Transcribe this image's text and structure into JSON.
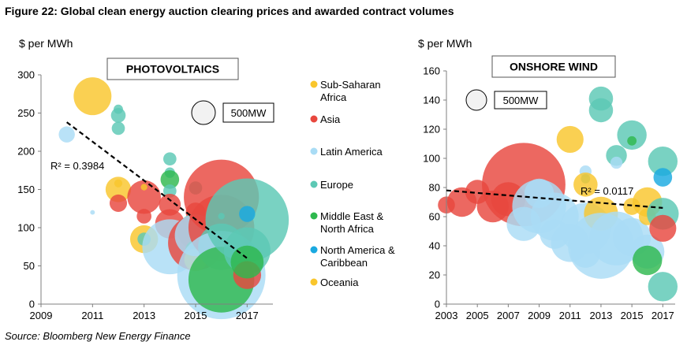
{
  "figure": {
    "title": "Figure 22: Global clean energy auction clearing prices and awarded contract volumes",
    "source": "Source: Bloomberg New Energy Finance"
  },
  "legend": [
    {
      "label": [
        "Sub-Saharan",
        "Africa"
      ],
      "color": "#f9c62c"
    },
    {
      "label": [
        "Asia"
      ],
      "color": "#e8473e"
    },
    {
      "label": [
        "Latin America"
      ],
      "color": "#a9dcf5"
    },
    {
      "label": [
        "Europe"
      ],
      "color": "#5cc8b4"
    },
    {
      "label": [
        "Middle East &",
        "North Africa"
      ],
      "color": "#2eb84e"
    },
    {
      "label": [
        "North America &",
        "Caribbean"
      ],
      "color": "#1aa9e0"
    },
    {
      "label": [
        "Oceania"
      ],
      "color": "#f9c62c"
    }
  ],
  "chart_data": [
    {
      "type": "scatter",
      "title": "PHOTOVOLTAICS",
      "ylabel": "$ per MWh",
      "xlabel": "",
      "xlim": [
        2009,
        2018
      ],
      "ylim": [
        0,
        300
      ],
      "xticks": [
        2009,
        2011,
        2013,
        2015,
        2017
      ],
      "yticks": [
        0,
        50,
        100,
        150,
        200,
        250,
        300
      ],
      "size_legend": "500MW",
      "trendline": {
        "x": [
          2010,
          2017
        ],
        "y": [
          238,
          60
        ],
        "label": "R² = 0.3984"
      },
      "points": [
        {
          "x": 2011.0,
          "y": 272,
          "mw": 330,
          "region": "Sub-Saharan Africa",
          "color": "#f9c62c"
        },
        {
          "x": 2010.0,
          "y": 222,
          "mw": 60,
          "region": "Latin America",
          "color": "#a9dcf5"
        },
        {
          "x": 2012.0,
          "y": 255,
          "mw": 20,
          "region": "Europe",
          "color": "#5cc8b4"
        },
        {
          "x": 2012.0,
          "y": 247,
          "mw": 50,
          "region": "Europe",
          "color": "#5cc8b4"
        },
        {
          "x": 2012.0,
          "y": 230,
          "mw": 40,
          "region": "Europe",
          "color": "#5cc8b4"
        },
        {
          "x": 2012.0,
          "y": 150,
          "mw": 150,
          "region": "Oceania",
          "color": "#f9c62c"
        },
        {
          "x": 2012.0,
          "y": 132,
          "mw": 70,
          "region": "Asia",
          "color": "#e8473e"
        },
        {
          "x": 2012.0,
          "y": 158,
          "mw": 15,
          "region": "Oceania",
          "color": "#f9c62c"
        },
        {
          "x": 2011.0,
          "y": 120,
          "mw": 5,
          "region": "Latin America",
          "color": "#a9dcf5"
        },
        {
          "x": 2013.0,
          "y": 140,
          "mw": 260,
          "region": "Asia",
          "color": "#e8473e"
        },
        {
          "x": 2013.0,
          "y": 153,
          "mw": 10,
          "region": "Oceania",
          "color": "#f9c62c"
        },
        {
          "x": 2013.0,
          "y": 85,
          "mw": 180,
          "region": "Oceania",
          "color": "#f9c62c"
        },
        {
          "x": 2013.0,
          "y": 85,
          "mw": 40,
          "region": "Europe",
          "color": "#5cc8b4"
        },
        {
          "x": 2013.0,
          "y": 115,
          "mw": 50,
          "region": "Asia",
          "color": "#e8473e"
        },
        {
          "x": 2014.0,
          "y": 190,
          "mw": 40,
          "region": "Europe",
          "color": "#5cc8b4"
        },
        {
          "x": 2014.0,
          "y": 172,
          "mw": 25,
          "region": "Europe",
          "color": "#5cc8b4"
        },
        {
          "x": 2014.0,
          "y": 163,
          "mw": 80,
          "region": "Middle East & North Africa",
          "color": "#2eb84e"
        },
        {
          "x": 2014.0,
          "y": 148,
          "mw": 40,
          "region": "Europe",
          "color": "#5cc8b4"
        },
        {
          "x": 2014.0,
          "y": 130,
          "mw": 110,
          "region": "Asia",
          "color": "#e8473e"
        },
        {
          "x": 2014.0,
          "y": 105,
          "mw": 200,
          "region": "Asia",
          "color": "#e8473e"
        },
        {
          "x": 2014.0,
          "y": 75,
          "mw": 700,
          "region": "Latin America",
          "color": "#a9dcf5"
        },
        {
          "x": 2015.0,
          "y": 152,
          "mw": 40,
          "region": "Europe",
          "color": "#5cc8b4"
        },
        {
          "x": 2015.0,
          "y": 120,
          "mw": 90,
          "region": "Asia",
          "color": "#e8473e"
        },
        {
          "x": 2015.0,
          "y": 95,
          "mw": 300,
          "region": "Europe",
          "color": "#5cc8b4"
        },
        {
          "x": 2015.0,
          "y": 80,
          "mw": 700,
          "region": "Asia",
          "color": "#e8473e"
        },
        {
          "x": 2015.0,
          "y": 70,
          "mw": 100,
          "region": "Middle East & North Africa",
          "color": "#2eb84e"
        },
        {
          "x": 2015.0,
          "y": 58,
          "mw": 120,
          "region": "Oceania",
          "color": "#f9c62c"
        },
        {
          "x": 2015.0,
          "y": 90,
          "mw": 400,
          "region": "Latin America",
          "color": "#a9dcf5"
        },
        {
          "x": 2016.0,
          "y": 140,
          "mw": 1300,
          "region": "Asia",
          "color": "#e8473e"
        },
        {
          "x": 2016.0,
          "y": 100,
          "mw": 1000,
          "region": "Asia",
          "color": "#e8473e"
        },
        {
          "x": 2016.0,
          "y": 75,
          "mw": 500,
          "region": "Europe",
          "color": "#5cc8b4"
        },
        {
          "x": 2016.0,
          "y": 38,
          "mw": 1800,
          "region": "Latin America",
          "color": "#a9dcf5"
        },
        {
          "x": 2016.0,
          "y": 32,
          "mw": 1000,
          "region": "Middle East & North Africa",
          "color": "#2eb84e"
        },
        {
          "x": 2016.0,
          "y": 115,
          "mw": 10,
          "region": "Europe",
          "color": "#5cc8b4"
        },
        {
          "x": 2017.0,
          "y": 110,
          "mw": 1600,
          "region": "Europe",
          "color": "#5cc8b4"
        },
        {
          "x": 2017.0,
          "y": 118,
          "mw": 60,
          "region": "North America & Caribbean",
          "color": "#1aa9e0"
        },
        {
          "x": 2017.0,
          "y": 70,
          "mw": 500,
          "region": "Europe",
          "color": "#5cc8b4"
        },
        {
          "x": 2017.0,
          "y": 38,
          "mw": 180,
          "region": "Asia",
          "color": "#e8473e"
        },
        {
          "x": 2017.0,
          "y": 55,
          "mw": 250,
          "region": "Middle East & North Africa",
          "color": "#2eb84e"
        }
      ]
    },
    {
      "type": "scatter",
      "title": "ONSHORE WIND",
      "ylabel": "$ per MWh",
      "xlabel": "",
      "xlim": [
        2003,
        2017.8
      ],
      "ylim": [
        0,
        160
      ],
      "xticks": [
        2003,
        2005,
        2007,
        2009,
        2011,
        2013,
        2015,
        2017
      ],
      "yticks": [
        0,
        20,
        40,
        60,
        80,
        100,
        120,
        140,
        160
      ],
      "size_legend": "500MW",
      "trendline": {
        "x": [
          2003,
          2017
        ],
        "y": [
          78,
          66
        ],
        "label": "R² = 0.0117"
      },
      "points": [
        {
          "x": 2003.0,
          "y": 68,
          "mw": 100,
          "region": "Asia",
          "color": "#e8473e"
        },
        {
          "x": 2004.0,
          "y": 70,
          "mw": 300,
          "region": "Asia",
          "color": "#e8473e"
        },
        {
          "x": 2005.0,
          "y": 77,
          "mw": 200,
          "region": "Asia",
          "color": "#e8473e"
        },
        {
          "x": 2006.0,
          "y": 67,
          "mw": 350,
          "region": "Asia",
          "color": "#e8473e"
        },
        {
          "x": 2007.0,
          "y": 72,
          "mw": 400,
          "region": "Asia",
          "color": "#e8473e"
        },
        {
          "x": 2008.0,
          "y": 82,
          "mw": 2400,
          "region": "Asia",
          "color": "#e8473e"
        },
        {
          "x": 2008.0,
          "y": 55,
          "mw": 400,
          "region": "Latin America",
          "color": "#a9dcf5"
        },
        {
          "x": 2009.0,
          "y": 67,
          "mw": 1000,
          "region": "Latin America",
          "color": "#a9dcf5"
        },
        {
          "x": 2009.0,
          "y": 76,
          "mw": 300,
          "region": "Latin America",
          "color": "#a9dcf5"
        },
        {
          "x": 2010.0,
          "y": 60,
          "mw": 800,
          "region": "Latin America",
          "color": "#a9dcf5"
        },
        {
          "x": 2010.0,
          "y": 48,
          "mw": 300,
          "region": "Latin America",
          "color": "#a9dcf5"
        },
        {
          "x": 2011.0,
          "y": 113,
          "mw": 250,
          "region": "Sub-Saharan Africa",
          "color": "#f9c62c"
        },
        {
          "x": 2011.0,
          "y": 42,
          "mw": 500,
          "region": "Latin America",
          "color": "#a9dcf5"
        },
        {
          "x": 2012.0,
          "y": 91,
          "mw": 50,
          "region": "Latin America",
          "color": "#a9dcf5"
        },
        {
          "x": 2012.0,
          "y": 86,
          "mw": 30,
          "region": "Europe",
          "color": "#5cc8b4"
        },
        {
          "x": 2012.0,
          "y": 82,
          "mw": 200,
          "region": "Oceania",
          "color": "#f9c62c"
        },
        {
          "x": 2012.0,
          "y": 52,
          "mw": 900,
          "region": "Latin America",
          "color": "#a9dcf5"
        },
        {
          "x": 2012.0,
          "y": 35,
          "mw": 300,
          "region": "Latin America",
          "color": "#a9dcf5"
        },
        {
          "x": 2013.0,
          "y": 141,
          "mw": 200,
          "region": "Europe",
          "color": "#5cc8b4"
        },
        {
          "x": 2013.0,
          "y": 133,
          "mw": 200,
          "region": "Europe",
          "color": "#5cc8b4"
        },
        {
          "x": 2013.0,
          "y": 62,
          "mw": 400,
          "region": "Oceania",
          "color": "#f9c62c"
        },
        {
          "x": 2013.0,
          "y": 40,
          "mw": 1500,
          "region": "Latin America",
          "color": "#a9dcf5"
        },
        {
          "x": 2014.0,
          "y": 102,
          "mw": 150,
          "region": "Europe",
          "color": "#5cc8b4"
        },
        {
          "x": 2014.0,
          "y": 97,
          "mw": 50,
          "region": "Latin America",
          "color": "#a9dcf5"
        },
        {
          "x": 2014.0,
          "y": 45,
          "mw": 1000,
          "region": "Latin America",
          "color": "#a9dcf5"
        },
        {
          "x": 2015.0,
          "y": 116,
          "mw": 300,
          "region": "Europe",
          "color": "#5cc8b4"
        },
        {
          "x": 2015.0,
          "y": 112,
          "mw": 30,
          "region": "Middle East & North Africa",
          "color": "#2eb84e"
        },
        {
          "x": 2015.0,
          "y": 67,
          "mw": 100,
          "region": "Oceania",
          "color": "#f9c62c"
        },
        {
          "x": 2015.0,
          "y": 46,
          "mw": 500,
          "region": "Latin America",
          "color": "#a9dcf5"
        },
        {
          "x": 2016.0,
          "y": 70,
          "mw": 300,
          "region": "Sub-Saharan Africa",
          "color": "#f9c62c"
        },
        {
          "x": 2016.0,
          "y": 60,
          "mw": 100,
          "region": "Oceania",
          "color": "#f9c62c"
        },
        {
          "x": 2016.0,
          "y": 36,
          "mw": 400,
          "region": "Latin America",
          "color": "#a9dcf5"
        },
        {
          "x": 2016.0,
          "y": 30,
          "mw": 300,
          "region": "Middle East & North Africa",
          "color": "#2eb84e"
        },
        {
          "x": 2017.0,
          "y": 98,
          "mw": 300,
          "region": "Europe",
          "color": "#5cc8b4"
        },
        {
          "x": 2017.0,
          "y": 87,
          "mw": 120,
          "region": "North America & Caribbean",
          "color": "#1aa9e0"
        },
        {
          "x": 2017.0,
          "y": 62,
          "mw": 350,
          "region": "Europe",
          "color": "#5cc8b4"
        },
        {
          "x": 2017.0,
          "y": 52,
          "mw": 250,
          "region": "Asia",
          "color": "#e8473e"
        },
        {
          "x": 2017.0,
          "y": 12,
          "mw": 300,
          "region": "Europe",
          "color": "#5cc8b4"
        }
      ]
    }
  ]
}
